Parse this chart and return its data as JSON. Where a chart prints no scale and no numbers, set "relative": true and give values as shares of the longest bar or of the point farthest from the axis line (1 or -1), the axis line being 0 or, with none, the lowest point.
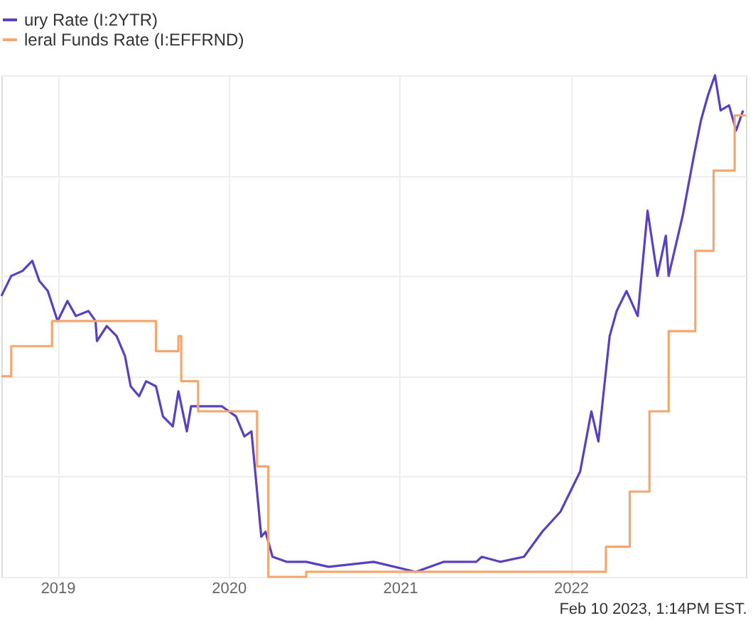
{
  "chart_data": {
    "type": "line",
    "relative": true,
    "grid": true,
    "legend": "top left",
    "xlim": [
      "2018-09-03",
      "2023-01-10"
    ],
    "xticks": [
      {
        "value": "2019",
        "label": "2019"
      },
      {
        "value": "2020",
        "label": "2020"
      },
      {
        "value": "2021",
        "label": "2021"
      },
      {
        "value": "2022",
        "label": "2022"
      }
    ],
    "annotations": [
      "Feb 10 2023, 1:14PM EST."
    ],
    "series": [
      {
        "name": "ury Rate (I:2YTR)",
        "color": "#5a3fc0",
        "x": [
          "2018-09-03",
          "2018-09-24",
          "2018-10-18",
          "2018-11-08",
          "2018-11-23",
          "2018-12-11",
          "2019-01-01",
          "2019-01-22",
          "2019-02-09",
          "2019-03-08",
          "2019-03-23",
          "2019-03-26",
          "2019-04-16",
          "2019-05-07",
          "2019-05-25",
          "2019-06-06",
          "2019-06-24",
          "2019-07-09",
          "2019-07-30",
          "2019-08-14",
          "2019-09-04",
          "2019-09-16",
          "2019-10-04",
          "2019-10-13",
          "2019-11-06",
          "2019-12-18",
          "2020-01-17",
          "2020-02-04",
          "2020-02-19",
          "2020-03-02",
          "2020-03-11",
          "2020-03-20",
          "2020-04-04",
          "2020-05-04",
          "2020-06-15",
          "2020-08-02",
          "2020-11-06",
          "2021-02-04",
          "2021-04-05",
          "2021-06-13",
          "2021-06-25",
          "2021-08-03",
          "2021-09-23",
          "2021-11-01",
          "2021-12-10",
          "2022-01-21",
          "2022-02-14",
          "2022-03-01",
          "2022-03-25",
          "2022-04-09",
          "2022-04-30",
          "2022-05-24",
          "2022-06-14",
          "2022-07-05",
          "2022-07-23",
          "2022-07-29",
          "2022-08-28",
          "2022-09-21",
          "2022-10-06",
          "2022-10-21",
          "2022-11-05",
          "2022-11-17",
          "2022-12-05",
          "2022-12-20",
          "2023-01-04"
        ],
        "values": [
          0.56,
          0.6,
          0.61,
          0.63,
          0.59,
          0.57,
          0.51,
          0.55,
          0.52,
          0.53,
          0.51,
          0.47,
          0.5,
          0.48,
          0.44,
          0.38,
          0.36,
          0.39,
          0.38,
          0.32,
          0.3,
          0.37,
          0.29,
          0.34,
          0.34,
          0.34,
          0.32,
          0.28,
          0.29,
          0.17,
          0.08,
          0.09,
          0.04,
          0.03,
          0.03,
          0.02,
          0.03,
          0.01,
          0.03,
          0.03,
          0.04,
          0.03,
          0.04,
          0.09,
          0.13,
          0.21,
          0.33,
          0.27,
          0.48,
          0.53,
          0.57,
          0.52,
          0.73,
          0.6,
          0.68,
          0.6,
          0.72,
          0.84,
          0.91,
          0.96,
          1,
          0.93,
          0.94,
          0.89,
          0.93
        ]
      },
      {
        "name": "leral Funds Rate (I:EFFRND)",
        "color": "#f5a66e",
        "type": "step",
        "x": [
          "2018-09-03",
          "2018-09-24",
          "2018-12-20",
          "2019-07-30",
          "2019-09-16",
          "2019-09-22",
          "2019-10-28",
          "2020-03-02",
          "2020-03-26",
          "2020-06-15",
          "2022-03-17",
          "2022-05-07",
          "2022-06-18",
          "2022-07-29",
          "2022-09-24",
          "2022-11-02",
          "2022-12-17",
          "2023-01-10"
        ],
        "values": [
          0.4,
          0.46,
          0.51,
          0.45,
          0.48,
          0.39,
          0.33,
          0.22,
          0.0,
          0.01,
          0.06,
          0.17,
          0.33,
          0.49,
          0.65,
          0.81,
          0.92,
          0.92
        ]
      }
    ]
  }
}
